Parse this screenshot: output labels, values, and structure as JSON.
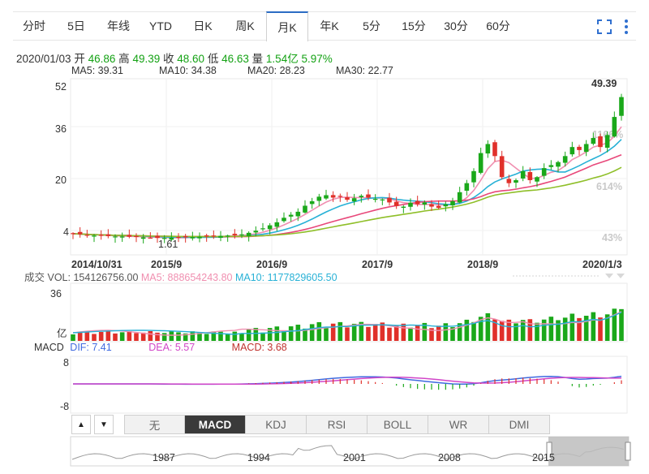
{
  "tabs": [
    "分时",
    "5日",
    "年线",
    "YTD",
    "日K",
    "周K",
    "月K",
    "年K",
    "5分",
    "15分",
    "30分",
    "60分"
  ],
  "active_tab": "月K",
  "toolbar": {
    "fullscreen_icon": "fullscreen-icon",
    "more_icon": "more-vertical-icon"
  },
  "quote": {
    "date": "2020/01/03",
    "open_label": "开",
    "open": "46.86",
    "high_label": "高",
    "high": "49.39",
    "close_label": "收",
    "close": "48.60",
    "low_label": "低",
    "low": "46.63",
    "volume_label": "量",
    "volume": "1.54亿",
    "change_pct": "5.97%"
  },
  "ma_legend": [
    {
      "label": "MA5: 39.31",
      "color": "#f08fb0"
    },
    {
      "label": "MA10: 34.38",
      "color": "#27b1d6"
    },
    {
      "label": "MA20: 28.23",
      "color": "#e8487a"
    },
    {
      "label": "MA30: 22.77",
      "color": "#8fbf29"
    }
  ],
  "price_axis": [
    "52",
    "36",
    "20",
    "4"
  ],
  "price_pct_labels": [
    "1166%",
    "614%",
    "43%"
  ],
  "last_price": "49.39",
  "low_marker": "1.61",
  "date_labels": [
    "2014/10/31",
    "2015/9",
    "2016/9",
    "2017/9",
    "2018/9",
    "2020/1/3"
  ],
  "volume": {
    "title": "成交",
    "vol": "VOL: 154126756.00",
    "ma5": "MA5: 888654243.80",
    "ma10": "MA10: 1177829605.50",
    "axis_top": "36",
    "axis_bottom": "亿"
  },
  "macd": {
    "title": "MACD",
    "dif": "DIF: 7.41",
    "dea": "DEA: 5.57",
    "macd": "MACD: 3.68",
    "axis_top": "8",
    "axis_bottom": "-8"
  },
  "indicator_tabs": [
    "无",
    "MACD",
    "KDJ",
    "RSI",
    "BOLL",
    "WR",
    "DMI"
  ],
  "active_indicator": "MACD",
  "navigator_years": [
    "1987",
    "1994",
    "2001",
    "2008",
    "2015"
  ],
  "colors": {
    "up": "#e0302a",
    "down": "#1aa81a",
    "accent": "#2f6fcf"
  },
  "chart_data": {
    "type": "candlestick",
    "period": "monthly",
    "date_range": [
      "2014/10/31",
      "2020/1/3"
    ],
    "price_range": [
      1.61,
      49.39
    ],
    "last": {
      "open": 46.86,
      "high": 49.39,
      "close": 48.6,
      "low": 46.63,
      "change_pct": 5.97
    },
    "moving_averages": {
      "MA5": 39.31,
      "MA10": 34.38,
      "MA20": 28.23,
      "MA30": 22.77
    },
    "macd": {
      "DIF": 7.41,
      "DEA": 5.57,
      "MACD": 3.68
    }
  }
}
